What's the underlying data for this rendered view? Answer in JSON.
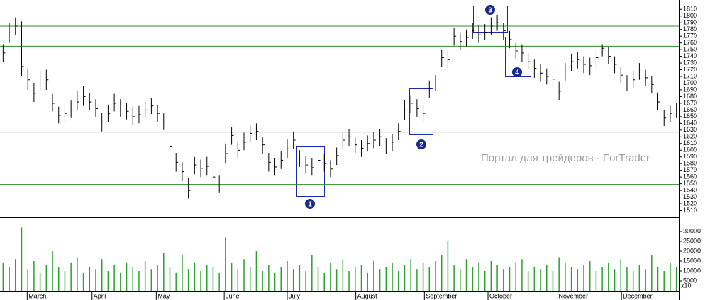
{
  "chart_data": {
    "type": "ohlc",
    "high": [
      1758,
      1790,
      1798,
      1792,
      1722,
      1700,
      1718,
      1720,
      1684,
      1665,
      1668,
      1674,
      1688,
      1696,
      1685,
      1676,
      1656,
      1668,
      1684,
      1676,
      1670,
      1663,
      1666,
      1672,
      1678,
      1668,
      1655,
      1618,
      1596,
      1582,
      1558,
      1590,
      1586,
      1590,
      1575,
      1562,
      1610,
      1634,
      1614,
      1626,
      1638,
      1640,
      1620,
      1596,
      1588,
      1598,
      1616,
      1628,
      1600,
      1591,
      1588,
      1598,
      1594,
      1585,
      1604,
      1628,
      1632,
      1620,
      1615,
      1622,
      1627,
      1632,
      1618,
      1624,
      1640,
      1674,
      1682,
      1676,
      1668,
      1704,
      1712,
      1750,
      1748,
      1782,
      1776,
      1780,
      1790,
      1786,
      1788,
      1798,
      1802,
      1790,
      1778,
      1760,
      1758,
      1745,
      1735,
      1728,
      1722,
      1718,
      1702,
      1730,
      1744,
      1746,
      1740,
      1738,
      1750,
      1758,
      1754,
      1740,
      1725,
      1712,
      1718,
      1730,
      1720,
      1710,
      1686,
      1660,
      1666,
      1670
    ],
    "low": [
      1732,
      1760,
      1772,
      1710,
      1690,
      1672,
      1688,
      1690,
      1658,
      1640,
      1642,
      1648,
      1660,
      1666,
      1660,
      1650,
      1628,
      1642,
      1658,
      1650,
      1646,
      1638,
      1640,
      1648,
      1654,
      1642,
      1630,
      1592,
      1568,
      1554,
      1528,
      1564,
      1560,
      1562,
      1546,
      1536,
      1580,
      1608,
      1588,
      1600,
      1612,
      1615,
      1595,
      1568,
      1562,
      1572,
      1588,
      1602,
      1575,
      1565,
      1562,
      1572,
      1568,
      1560,
      1578,
      1602,
      1606,
      1596,
      1590,
      1598,
      1603,
      1606,
      1594,
      1598,
      1615,
      1645,
      1656,
      1650,
      1642,
      1678,
      1688,
      1724,
      1722,
      1756,
      1750,
      1755,
      1766,
      1760,
      1764,
      1772,
      1778,
      1765,
      1752,
      1736,
      1732,
      1720,
      1708,
      1702,
      1698,
      1694,
      1675,
      1704,
      1718,
      1722,
      1715,
      1712,
      1725,
      1740,
      1728,
      1715,
      1700,
      1688,
      1692,
      1705,
      1696,
      1685,
      1660,
      1636,
      1642,
      1648
    ],
    "close": [
      1745,
      1775,
      1785,
      1725,
      1705,
      1685,
      1700,
      1705,
      1670,
      1652,
      1655,
      1660,
      1672,
      1680,
      1672,
      1662,
      1642,
      1655,
      1670,
      1663,
      1658,
      1650,
      1653,
      1660,
      1666,
      1655,
      1642,
      1605,
      1582,
      1568,
      1540,
      1578,
      1573,
      1576,
      1560,
      1548,
      1595,
      1622,
      1600,
      1612,
      1625,
      1628,
      1608,
      1582,
      1575,
      1585,
      1602,
      1615,
      1588,
      1578,
      1574,
      1585,
      1580,
      1572,
      1592,
      1615,
      1620,
      1608,
      1603,
      1610,
      1615,
      1620,
      1606,
      1612,
      1628,
      1660,
      1670,
      1662,
      1655,
      1692,
      1700,
      1738,
      1735,
      1770,
      1762,
      1768,
      1778,
      1772,
      1776,
      1785,
      1790,
      1778,
      1765,
      1748,
      1745,
      1732,
      1722,
      1715,
      1710,
      1706,
      1688,
      1718,
      1732,
      1735,
      1728,
      1726,
      1738,
      1752,
      1740,
      1728,
      1712,
      1700,
      1705,
      1718,
      1708,
      1698,
      1672,
      1648,
      1655,
      1660
    ],
    "volume": [
      14000,
      12000,
      16000,
      32000,
      11000,
      15000,
      9000,
      13000,
      20000,
      12000,
      10000,
      14000,
      17000,
      9000,
      12000,
      11000,
      16000,
      10000,
      13000,
      9000,
      14000,
      12000,
      10000,
      15000,
      11000,
      13000,
      19000,
      12000,
      9000,
      18000,
      11000,
      14000,
      10000,
      13000,
      12000,
      9000,
      27000,
      14000,
      11000,
      16000,
      12000,
      20000,
      10000,
      13000,
      9000,
      12000,
      15000,
      11000,
      13000,
      10000,
      18000,
      12000,
      9000,
      14000,
      11000,
      16000,
      10000,
      12000,
      13000,
      9000,
      15000,
      11000,
      12000,
      14000,
      10000,
      13000,
      16000,
      11000,
      14000,
      12000,
      15000,
      18000,
      25000,
      13000,
      11000,
      16000,
      12000,
      14000,
      10000,
      15000,
      13000,
      11000,
      12000,
      14000,
      16000,
      10000,
      12000,
      11000,
      13000,
      10000,
      17000,
      14000,
      12000,
      11000,
      13000,
      15000,
      10000,
      12000,
      14000,
      11000,
      16000,
      12000,
      10000,
      13000,
      11000,
      18000,
      12000,
      10000,
      14000,
      12000
    ],
    "price_color": "#000000",
    "volume_color": "#2ca02c",
    "level_color": "#2e8b2e",
    "levels": [
      1785,
      1755,
      1627,
      1549
    ],
    "ylim": [
      1500,
      1824
    ],
    "yticks": [
      1510,
      1520,
      1530,
      1540,
      1550,
      1560,
      1570,
      1580,
      1590,
      1600,
      1610,
      1620,
      1630,
      1640,
      1650,
      1660,
      1670,
      1680,
      1690,
      1700,
      1710,
      1720,
      1730,
      1740,
      1750,
      1760,
      1770,
      1780,
      1790,
      1800,
      1810
    ],
    "volume_ylim": [
      0,
      36800
    ],
    "volume_yticks": [
      5000,
      10000,
      15000,
      20000,
      25000,
      30000
    ],
    "volume_unit": "x10",
    "xlim": [
      0,
      110
    ],
    "xticks": [
      {
        "value": 4.4,
        "label": "March"
      },
      {
        "value": 14.9,
        "label": "April"
      },
      {
        "value": 25.3,
        "label": "May"
      },
      {
        "value": 36.3,
        "label": "June"
      },
      {
        "value": 46.5,
        "label": "July"
      },
      {
        "value": 57.6,
        "label": "August"
      },
      {
        "value": 68.7,
        "label": "September"
      },
      {
        "value": 79,
        "label": "October"
      },
      {
        "value": 90.2,
        "label": "November"
      },
      {
        "value": 100.6,
        "label": "December"
      }
    ],
    "annotations": [
      "1",
      "2",
      "3",
      "4"
    ],
    "watermark": "Портал для трейдеров - ForTrader"
  }
}
